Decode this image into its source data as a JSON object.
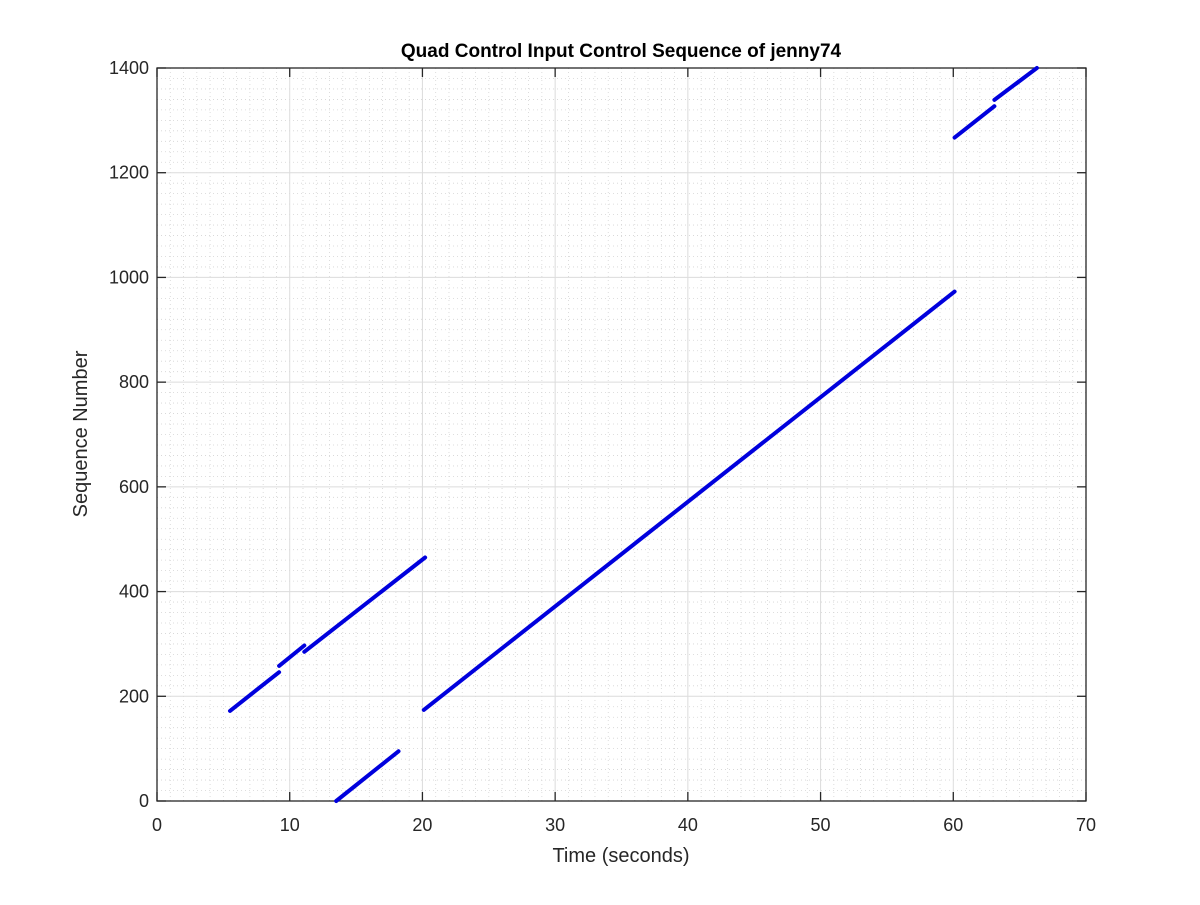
{
  "chart_data": {
    "type": "line",
    "title": "Quad Control Input Control Sequence of jenny74",
    "xlabel": "Time (seconds)",
    "ylabel": "Sequence Number",
    "xlim": [
      0,
      70
    ],
    "ylim": [
      0,
      1400
    ],
    "xticks": [
      0,
      10,
      20,
      30,
      40,
      50,
      60,
      70
    ],
    "yticks": [
      0,
      200,
      400,
      600,
      800,
      1000,
      1200,
      1400
    ],
    "grid": true,
    "minor_grid": true,
    "legend": "none",
    "series": [
      {
        "color": "#0000dd",
        "segments": [
          [
            [
              5.5,
              172
            ],
            [
              9.2,
              246
            ]
          ],
          [
            [
              9.2,
              258
            ],
            [
              11.1,
              297
            ]
          ],
          [
            [
              11.1,
              285
            ],
            [
              20.2,
              465
            ]
          ],
          [
            [
              13.5,
              0
            ],
            [
              18.2,
              95
            ]
          ],
          [
            [
              20.1,
              174
            ],
            [
              60.1,
              973
            ]
          ],
          [
            [
              60.1,
              1267
            ],
            [
              63.1,
              1327
            ]
          ],
          [
            [
              63.1,
              1339
            ],
            [
              66.3,
              1400
            ]
          ]
        ]
      }
    ]
  }
}
